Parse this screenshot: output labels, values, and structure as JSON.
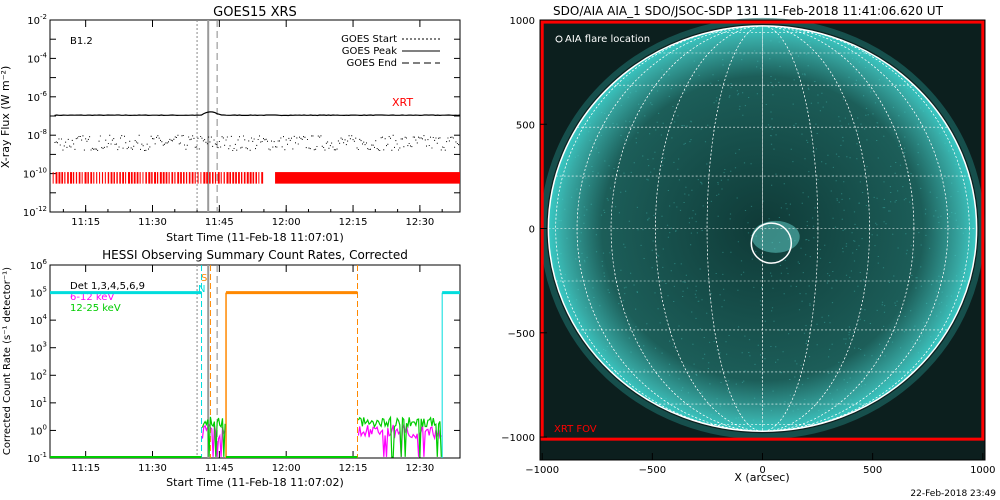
{
  "page_timestamp": "22-Feb-2018 23:49",
  "chart_data": [
    {
      "type": "line",
      "title": "GOES15 XRS",
      "class_label": "B1.2",
      "xlabel": "Start Time (11-Feb-18 11:07:01)",
      "ylabel": "X-ray Flux (W m⁻²)",
      "x_ticks": [
        "11:15",
        "11:30",
        "11:45",
        "12:00",
        "12:15",
        "12:30"
      ],
      "x_tick_minutes": [
        15,
        30,
        45,
        60,
        75,
        90
      ],
      "xlim_minutes": [
        7,
        99
      ],
      "y_scale": "log",
      "ylim": [
        1e-12,
        0.01
      ],
      "y_tick_exponents": [
        -12,
        -10,
        -8,
        -6,
        -4,
        -2
      ],
      "legend": [
        "GOES Start",
        "GOES Peak",
        "GOES End"
      ],
      "markers_minutes": {
        "start": 40,
        "peak": 42.5,
        "end": 44.5
      },
      "series": [
        {
          "name": "long",
          "level": 1.1e-07
        },
        {
          "name": "short",
          "level": 4e-09
        }
      ],
      "xrt_label": "XRT",
      "xrt_coverage_minutes": [
        [
          7.6,
          54.5
        ],
        [
          57.5,
          99
        ]
      ],
      "colors": {
        "xrt": "#ff0000",
        "data": "#000000"
      }
    },
    {
      "type": "line",
      "title": "HESSI Observing Summary Count Rates, Corrected",
      "xlabel": "Start Time (11-Feb-18 11:07:02)",
      "ylabel": "Corrected Count Rate (s⁻¹ detector⁻¹)",
      "x_ticks": [
        "11:15",
        "11:30",
        "11:45",
        "12:00",
        "12:15",
        "12:30"
      ],
      "x_tick_minutes": [
        15,
        30,
        45,
        60,
        75,
        90
      ],
      "xlim_minutes": [
        7,
        99
      ],
      "y_scale": "log",
      "ylim": [
        0.1,
        1000000.0
      ],
      "y_tick_exponents": [
        -1,
        0,
        1,
        2,
        3,
        4,
        5,
        6
      ],
      "legend": [
        {
          "label": "Det 1,3,4,5,6,9",
          "color": "#000000"
        },
        {
          "label": "6-12 keV",
          "color": "#ff00ff"
        },
        {
          "label": "12-25 keV",
          "color": "#00cc00"
        }
      ],
      "night_label": "N",
      "saa_label": "S",
      "night_intervals": [
        [
          7,
          41
        ],
        [
          95,
          99
        ]
      ],
      "saa_interval": [
        46.5,
        76
      ],
      "count_rates": {
        "6-12 keV": {
          "level": 0.9
        },
        "12-25 keV": {
          "level": 2.0
        }
      },
      "colors": {
        "night": "#00dddd",
        "saa": "#ff8800"
      }
    },
    {
      "type": "image",
      "title": "SDO/AIA AIA_1 SDO/JSOC-SDP 131 11-Feb-2018 11:41:06.620 UT",
      "xlabel": "X (arcsec)",
      "ylabel": "",
      "x_ticks": [
        -1000,
        -500,
        0,
        500,
        1000
      ],
      "y_ticks": [
        -1000,
        -500,
        0,
        500,
        1000
      ],
      "xlim": [
        -1010,
        1010
      ],
      "ylim": [
        -1110,
        1000
      ],
      "solar_radius_arcsec": 972,
      "flare_location_label": "AIA flare location",
      "flare_location": [
        40,
        -70
      ],
      "xrt_fov_label": "XRT FOV",
      "xrt_fov": [
        [
          -1000,
          1000
        ],
        [
          -1010,
          990
        ]
      ],
      "roi_box": [
        [
          -120,
          -240
        ],
        [
          300,
          170
        ]
      ],
      "colors": {
        "disk": "#39c9c4",
        "background": "#0c1f1e",
        "box": "#ff0000"
      }
    }
  ]
}
